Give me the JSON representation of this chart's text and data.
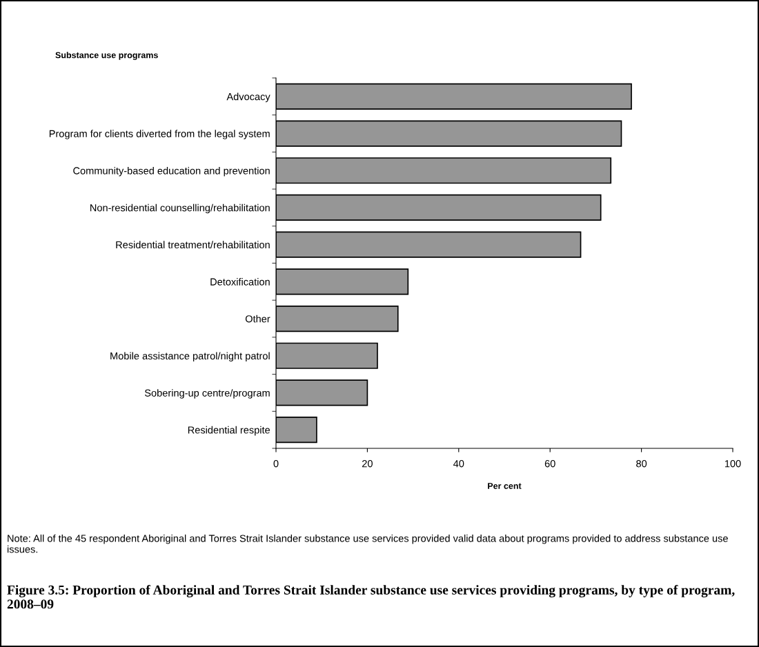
{
  "chart_data": {
    "type": "bar",
    "orientation": "horizontal",
    "title": "Figure 3.5: Proportion of Aboriginal and Torres Strait Islander substance use services providing programs, by type of program, 2008–09",
    "ylabel": "Substance use programs",
    "xlabel": "Per cent",
    "categories": [
      "Advocacy",
      "Program for clients diverted from the legal system",
      "Community-based education and prevention",
      "Non-residential counselling/rehabilitation",
      "Residential treatment/rehabilitation",
      "Detoxification",
      "Other",
      "Mobile assistance patrol/night patrol",
      "Sobering-up centre/program",
      "Residential respite"
    ],
    "values": [
      77.8,
      75.6,
      73.3,
      71.1,
      66.7,
      28.9,
      26.7,
      22.2,
      20.0,
      8.9
    ],
    "color": "#969696",
    "xlim": [
      0,
      100
    ],
    "xticks": [
      0,
      20,
      40,
      60,
      80,
      100
    ],
    "grid": false,
    "annotations": [
      "Note: All of the 45 respondent Aboriginal and Torres Strait Islander substance use services provided valid data about programs provided to address substance use issues."
    ]
  }
}
